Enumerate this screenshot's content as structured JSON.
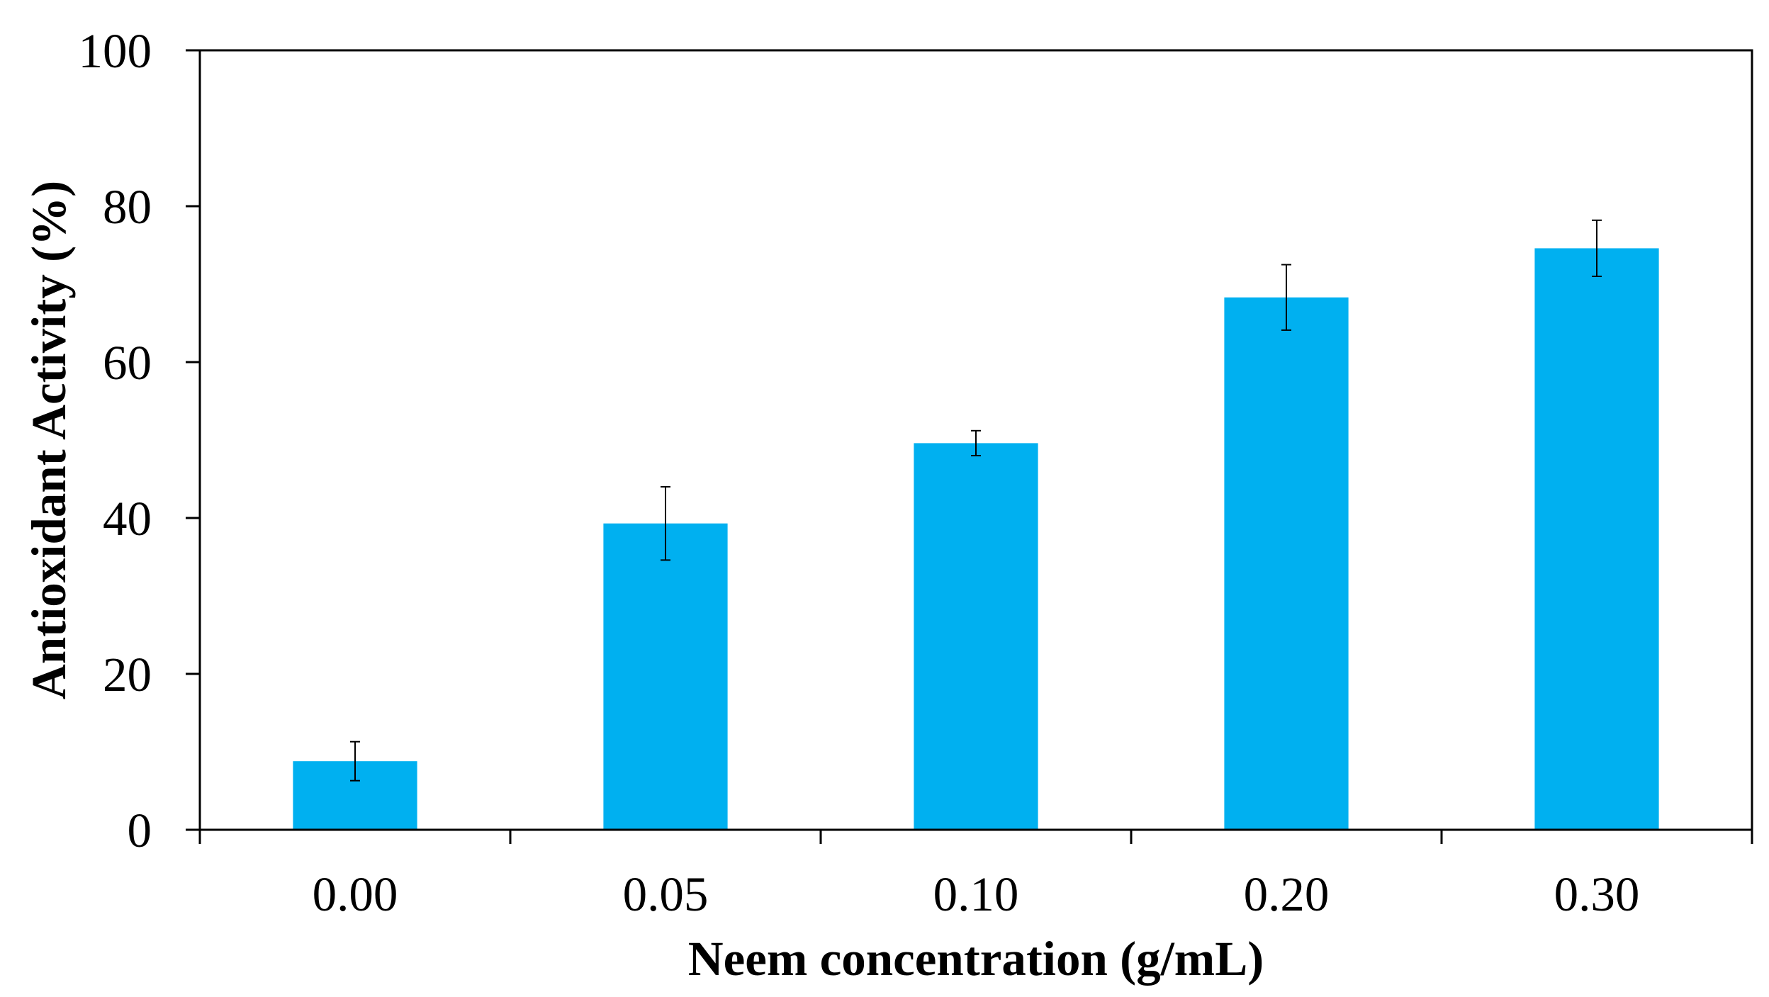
{
  "chart_data": {
    "type": "bar",
    "title": "",
    "xlabel": "Neem concentration (g/mL)",
    "ylabel": "Antioxidant Activity (%)",
    "categories": [
      "0.00",
      "0.05",
      "0.10",
      "0.20",
      "0.30"
    ],
    "values": [
      8.8,
      39.3,
      49.6,
      68.3,
      74.6
    ],
    "errors": [
      2.5,
      4.7,
      1.6,
      4.2,
      3.6
    ],
    "ylim": [
      0,
      100
    ],
    "yticks": [
      0,
      20,
      40,
      60,
      80,
      100
    ],
    "ytick_labels": [
      "0",
      "20",
      "40",
      "60",
      "80",
      "100"
    ],
    "grid": false,
    "legend": null,
    "bar_color": "#00B0F0",
    "axis_color": "#000000"
  }
}
